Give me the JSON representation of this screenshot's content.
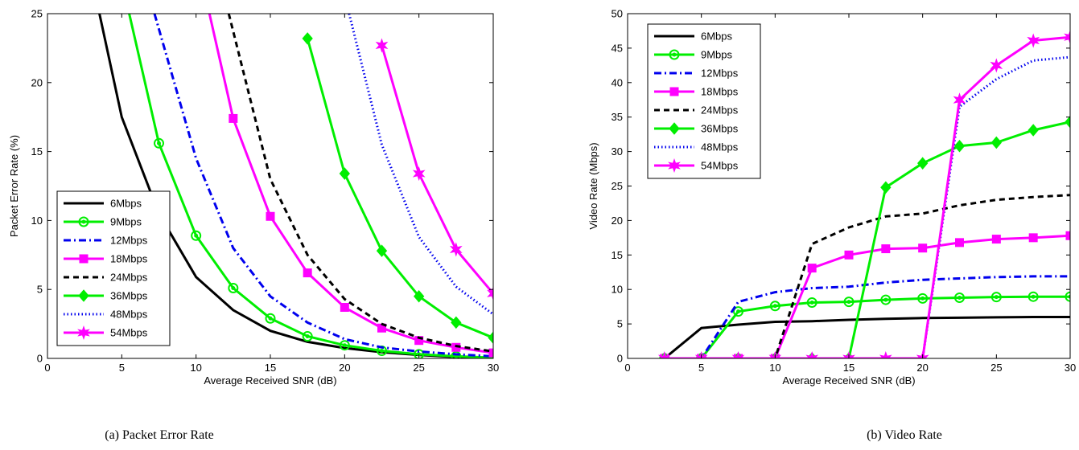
{
  "chart_data": [
    {
      "type": "line",
      "caption": "(a) Packet Error Rate",
      "xlabel": "Average Received SNR (dB)",
      "ylabel": "Packet Error Rate (%)",
      "xlim": [
        0,
        30
      ],
      "ylim": [
        0,
        25
      ],
      "xticks": [
        "0",
        "5",
        "10",
        "15",
        "20",
        "25",
        "30"
      ],
      "yticks": [
        "0",
        "5",
        "10",
        "15",
        "20",
        "25"
      ],
      "grid": false,
      "legend_position": "lower-left",
      "series": [
        {
          "name": "6Mbps",
          "color": "#000000",
          "style": "solid",
          "marker": "none",
          "x": [
            3.5,
            5,
            7.5,
            10,
            12.5,
            15,
            17.5,
            20,
            22.5,
            25,
            27.5,
            30
          ],
          "y": [
            25,
            17.5,
            10.5,
            5.9,
            3.5,
            2.0,
            1.2,
            0.75,
            0.45,
            0.25,
            0.1,
            0.05
          ]
        },
        {
          "name": "9Mbps",
          "color": "#00ee00",
          "style": "solid",
          "marker": "circle",
          "x": [
            5.5,
            7.5,
            10,
            12.5,
            15,
            17.5,
            20,
            22.5,
            25,
            27.5,
            30
          ],
          "y": [
            25,
            15.6,
            8.9,
            5.1,
            2.9,
            1.6,
            0.95,
            0.55,
            0.3,
            0.15,
            0.05
          ]
        },
        {
          "name": "12Mbps",
          "color": "#0000ee",
          "style": "dashdot",
          "marker": "none",
          "x": [
            7.2,
            10,
            12.5,
            15,
            17.5,
            20,
            22.5,
            25,
            27.5,
            30
          ],
          "y": [
            25,
            14.5,
            8.0,
            4.5,
            2.6,
            1.4,
            0.8,
            0.5,
            0.3,
            0.15
          ]
        },
        {
          "name": "18Mbps",
          "color": "#ff00ff",
          "style": "solid",
          "marker": "square",
          "x": [
            10.9,
            12.5,
            15,
            17.5,
            20,
            22.5,
            25,
            27.5,
            30
          ],
          "y": [
            25,
            17.4,
            10.3,
            6.2,
            3.7,
            2.2,
            1.3,
            0.8,
            0.4
          ]
        },
        {
          "name": "24Mbps",
          "color": "#000000",
          "style": "dashed",
          "marker": "none",
          "x": [
            12.2,
            15,
            17.5,
            20,
            22.5,
            25,
            27.5,
            30
          ],
          "y": [
            25,
            13,
            7.5,
            4.3,
            2.5,
            1.5,
            0.9,
            0.5
          ]
        },
        {
          "name": "36Mbps",
          "color": "#00ee00",
          "style": "solid",
          "marker": "diamond",
          "x": [
            17.5,
            20,
            22.5,
            25,
            27.5,
            30
          ],
          "y": [
            23.2,
            13.4,
            7.8,
            4.5,
            2.6,
            1.5
          ]
        },
        {
          "name": "48Mbps",
          "color": "#0000ee",
          "style": "dotted",
          "marker": "none",
          "x": [
            20.3,
            22.5,
            25,
            27.5,
            30
          ],
          "y": [
            25,
            15.5,
            8.8,
            5.2,
            3.2
          ]
        },
        {
          "name": "54Mbps",
          "color": "#ff00ff",
          "style": "solid",
          "marker": "star",
          "x": [
            22.5,
            25,
            27.5,
            30
          ],
          "y": [
            22.7,
            13.4,
            7.9,
            4.7
          ]
        }
      ]
    },
    {
      "type": "line",
      "caption": "(b) Video Rate",
      "xlabel": "Average Received SNR (dB)",
      "ylabel": "Video Rate (Mbps)",
      "xlim": [
        0,
        30
      ],
      "ylim": [
        0,
        50
      ],
      "xticks": [
        "0",
        "5",
        "10",
        "15",
        "20",
        "25",
        "30"
      ],
      "yticks": [
        "0",
        "5",
        "10",
        "15",
        "20",
        "25",
        "30",
        "35",
        "40",
        "45",
        "50"
      ],
      "grid": false,
      "legend_position": "top-left",
      "series": [
        {
          "name": "6Mbps",
          "color": "#000000",
          "style": "solid",
          "marker": "none",
          "x": [
            2.5,
            5,
            7.5,
            10,
            12.5,
            15,
            17.5,
            20,
            22.5,
            25,
            27.5,
            30
          ],
          "y": [
            0,
            4.4,
            4.9,
            5.3,
            5.4,
            5.6,
            5.75,
            5.85,
            5.9,
            5.95,
            6.0,
            6.0
          ]
        },
        {
          "name": "9Mbps",
          "color": "#00ee00",
          "style": "solid",
          "marker": "circle",
          "x": [
            2.5,
            5,
            7.5,
            10,
            12.5,
            15,
            17.5,
            20,
            22.5,
            25,
            27.5,
            30
          ],
          "y": [
            0,
            0,
            6.8,
            7.6,
            8.1,
            8.2,
            8.5,
            8.7,
            8.8,
            8.9,
            8.95,
            8.95
          ]
        },
        {
          "name": "12Mbps",
          "color": "#0000ee",
          "style": "dashdot",
          "marker": "none",
          "x": [
            2.5,
            5,
            7.5,
            10,
            12.5,
            15,
            17.5,
            20,
            22.5,
            25,
            27.5,
            30
          ],
          "y": [
            0,
            0,
            8.2,
            9.6,
            10.2,
            10.4,
            11.0,
            11.4,
            11.6,
            11.8,
            11.9,
            11.9
          ]
        },
        {
          "name": "18Mbps",
          "color": "#ff00ff",
          "style": "solid",
          "marker": "square",
          "x": [
            2.5,
            5,
            7.5,
            10,
            12.5,
            15,
            17.5,
            20,
            22.5,
            25,
            27.5,
            30
          ],
          "y": [
            0,
            0,
            0,
            0,
            13.1,
            15.0,
            15.9,
            16.0,
            16.8,
            17.3,
            17.5,
            17.8
          ]
        },
        {
          "name": "24Mbps",
          "color": "#000000",
          "style": "dashed",
          "marker": "none",
          "x": [
            2.5,
            5,
            7.5,
            10,
            12.5,
            15,
            17.5,
            20,
            22.5,
            25,
            27.5,
            30
          ],
          "y": [
            0,
            0,
            0,
            0,
            16.6,
            19.0,
            20.6,
            21.0,
            22.2,
            23.0,
            23.4,
            23.7
          ]
        },
        {
          "name": "36Mbps",
          "color": "#00ee00",
          "style": "solid",
          "marker": "diamond",
          "x": [
            2.5,
            5,
            7.5,
            10,
            12.5,
            15,
            17.5,
            20,
            22.5,
            25,
            27.5,
            30
          ],
          "y": [
            0,
            0,
            0,
            0,
            0,
            0,
            24.8,
            28.3,
            30.8,
            31.3,
            33.1,
            34.3
          ]
        },
        {
          "name": "48Mbps",
          "color": "#0000ee",
          "style": "dotted",
          "marker": "none",
          "x": [
            2.5,
            5,
            7.5,
            10,
            12.5,
            15,
            17.5,
            20,
            22.5,
            25,
            27.5,
            30
          ],
          "y": [
            0,
            0,
            0,
            0,
            0,
            0,
            0,
            0,
            36.5,
            40.5,
            43.2,
            43.7
          ]
        },
        {
          "name": "54Mbps",
          "color": "#ff00ff",
          "style": "solid",
          "marker": "star",
          "x": [
            2.5,
            5,
            7.5,
            10,
            12.5,
            15,
            17.5,
            20,
            22.5,
            25,
            27.5,
            30
          ],
          "y": [
            0,
            0,
            0,
            0,
            0,
            0,
            0,
            0,
            37.5,
            42.5,
            46.1,
            46.6
          ]
        }
      ]
    }
  ]
}
